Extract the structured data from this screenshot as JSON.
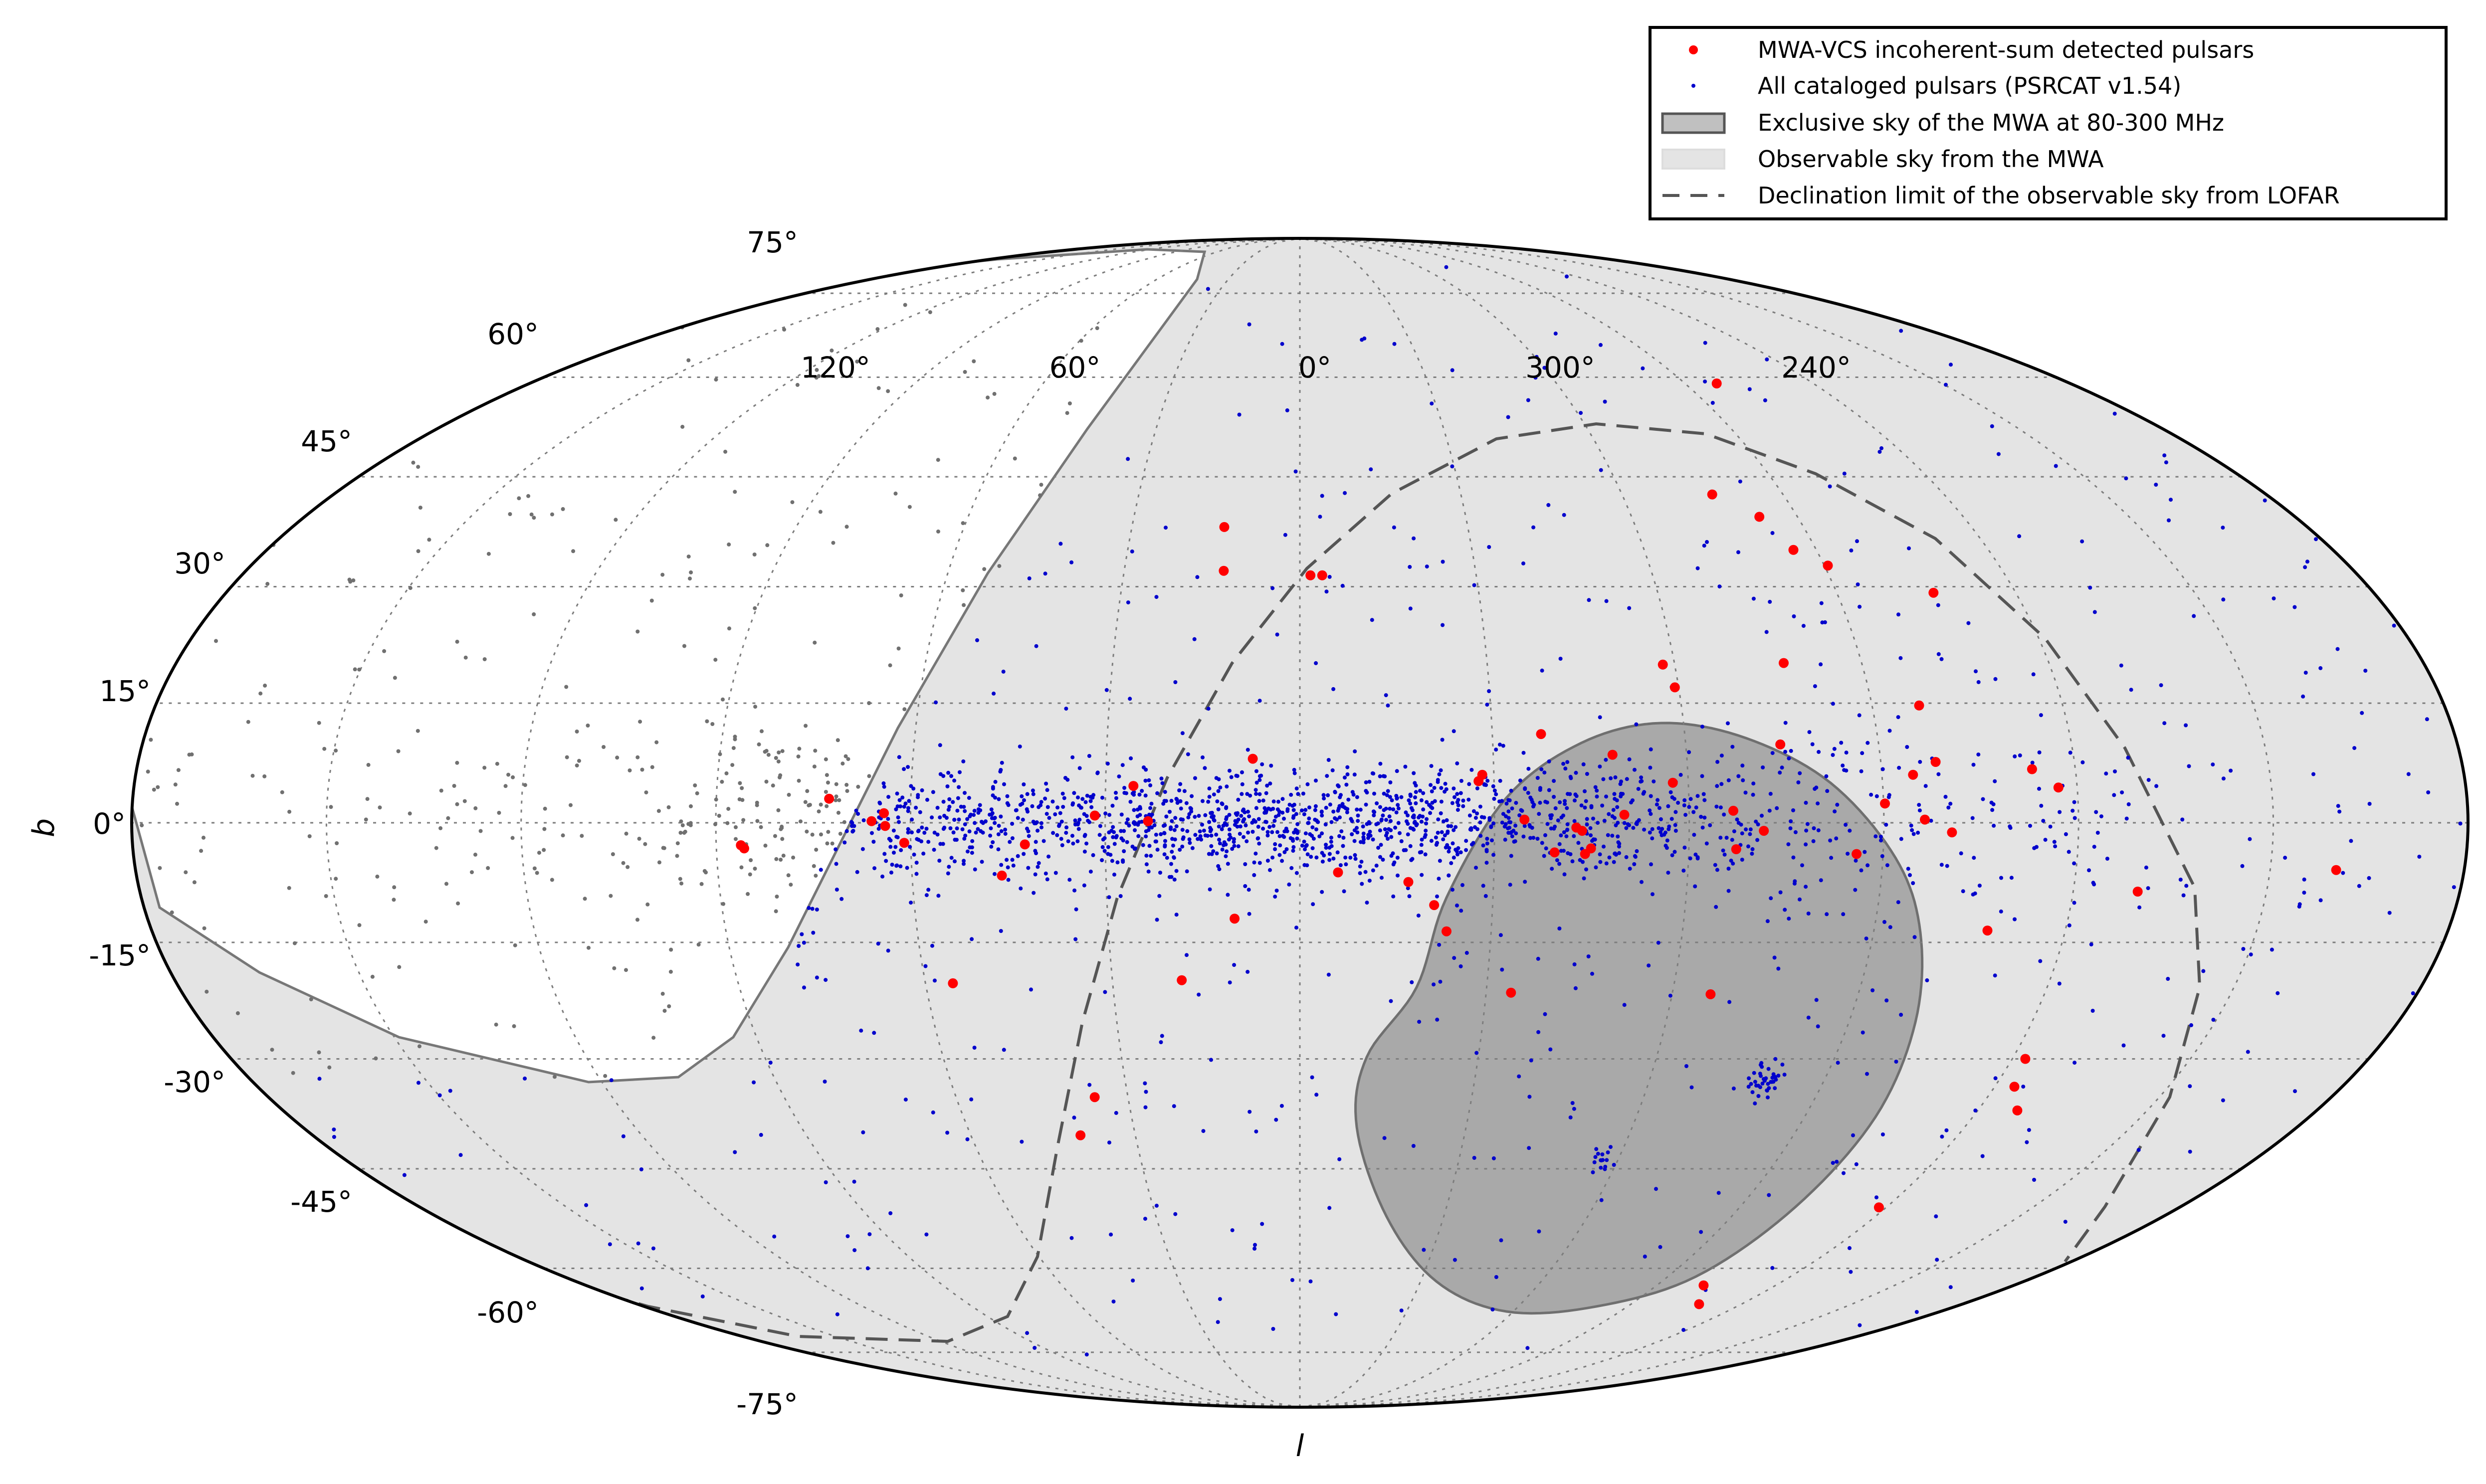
{
  "chart_data": {
    "type": "scatter",
    "projection": "mollweide (aitoff-style all-sky, galactic)",
    "title": "",
    "xlabel": "l",
    "ylabel": "b",
    "grid": true,
    "legend_position": "top-right",
    "longitude_ticks": [
      "120°",
      "60°",
      "0°",
      "300°",
      "240°"
    ],
    "longitude_tick_values": [
      120,
      60,
      0,
      300,
      240
    ],
    "latitude_ticks": [
      "75°",
      "60°",
      "45°",
      "30°",
      "15°",
      "0°",
      "-15°",
      "-30°",
      "-45°",
      "-60°",
      "-75°"
    ],
    "latitude_tick_values": [
      75,
      60,
      45,
      30,
      15,
      0,
      -15,
      -30,
      -45,
      -60,
      -75
    ],
    "legend": [
      {
        "label": "MWA-VCS incoherent-sum detected pulsars",
        "marker": "red-dot",
        "color": "#ff0000"
      },
      {
        "label": "All cataloged pulsars (PSRCAT v1.54)",
        "marker": "blue-point",
        "color": "#0000cc"
      },
      {
        "label": "Exclusive sky of the MWA at 80-300 MHz",
        "marker": "dark-patch",
        "color": "#a9a9a9"
      },
      {
        "label": "Observable sky from the MWA",
        "marker": "light-patch",
        "color": "#e4e4e4"
      },
      {
        "label": "Declination limit of the observable sky from LOFAR",
        "marker": "dashed-line",
        "color": "#555555"
      }
    ],
    "series": [
      {
        "name": "MWA-VCS incoherent-sum detected pulsars",
        "points": [
          [
            -97.4,
            59.0
          ],
          [
            -76.8,
            42.5
          ],
          [
            -83.1,
            39.4
          ],
          [
            -86.0,
            34.9
          ],
          [
            -90.6,
            32.8
          ],
          [
            -77.5,
            20.1
          ],
          [
            -59.4,
            17.0
          ],
          [
            -106.2,
            29.2
          ],
          [
            -58.1,
            19.9
          ],
          [
            -74.7,
            9.8
          ],
          [
            -97.4,
            14.7
          ],
          [
            -98.5,
            7.6
          ],
          [
            -94.8,
            6.0
          ],
          [
            -117.1,
            4.4
          ],
          [
            -113.3,
            6.7
          ],
          [
            -96.3,
            0.4
          ],
          [
            -100.5,
            -1.2
          ],
          [
            -90.2,
            2.4
          ],
          [
            -66.8,
            1.5
          ],
          [
            -57.6,
            5.0
          ],
          [
            -48.5,
            8.5
          ],
          [
            -37.6,
            11.1
          ],
          [
            -28.2,
            6.0
          ],
          [
            -27.6,
            5.2
          ],
          [
            13.0,
            32.1
          ],
          [
            -3.8,
            31.5
          ],
          [
            -1.8,
            31.5
          ],
          [
            13.5,
            38.0
          ],
          [
            7.3,
            8.0
          ],
          [
            -34.6,
            0.4
          ],
          [
            -50.0,
            1.0
          ],
          [
            -71.5,
            -1.0
          ],
          [
            -67.3,
            -3.3
          ],
          [
            -44.9,
            -3.2
          ],
          [
            -44.0,
            -3.9
          ],
          [
            -39.3,
            -3.7
          ],
          [
            -42.6,
            -0.6
          ],
          [
            -43.5,
            -1.0
          ],
          [
            -85.9,
            -3.9
          ],
          [
            72.6,
            3.0
          ],
          [
            64.1,
            1.2
          ],
          [
            63.9,
            -0.4
          ],
          [
            61.0,
            -2.5
          ],
          [
            46.1,
            -6.6
          ],
          [
            31.6,
            0.9
          ],
          [
            25.7,
            4.6
          ],
          [
            23.4,
            0.2
          ],
          [
            42.4,
            -2.7
          ],
          [
            66.0,
            0.2
          ],
          [
            86.2,
            -2.8
          ],
          [
            85.7,
            -3.2
          ],
          [
            10.2,
            -12.0
          ],
          [
            -5.9,
            -6.2
          ],
          [
            -16.8,
            -7.4
          ],
          [
            -20.9,
            -10.3
          ],
          [
            -23.0,
            -13.6
          ],
          [
            -34.0,
            -21.4
          ],
          [
            18.9,
            -19.8
          ],
          [
            55.6,
            -20.2
          ],
          [
            35.8,
            -35.1
          ],
          [
            40.0,
            -40.3
          ],
          [
            -118.5,
            -50.6
          ],
          [
            -101.8,
            -62.8
          ],
          [
            -108.5,
            -66.0
          ],
          [
            -66.2,
            -21.6
          ],
          [
            -160.2,
            -5.9
          ],
          [
            -130.0,
            -8.6
          ],
          [
            -107.8,
            -13.5
          ],
          [
            -122.2,
            -30.0
          ],
          [
            -123.4,
            -33.7
          ],
          [
            -127.0,
            -36.9
          ]
        ]
      },
      {
        "name": "All cataloged pulsars (PSRCAT v1.54)",
        "description": "about 2500 points concentrated along the galactic plane (b ≈ 0°) with scatter at higher latitudes, plus clusters near the Magellanic Clouds and 47 Tuc",
        "rendered_as": "procedural scatter approximating the visible distribution"
      }
    ],
    "regions": [
      {
        "name": "Exclusive sky of the MWA at 80-300 MHz",
        "shape": "southern polar cap (dec below about -40° in galactic projection)",
        "fill": "#a9a9a9"
      },
      {
        "name": "Observable sky from the MWA",
        "shape": "all sky except northern region beyond dec +30°",
        "fill": "#e4e4e4"
      },
      {
        "name": "Declination limit of the observable sky from LOFAR",
        "shape": "dashed contour",
        "stroke": "#555555"
      }
    ]
  }
}
